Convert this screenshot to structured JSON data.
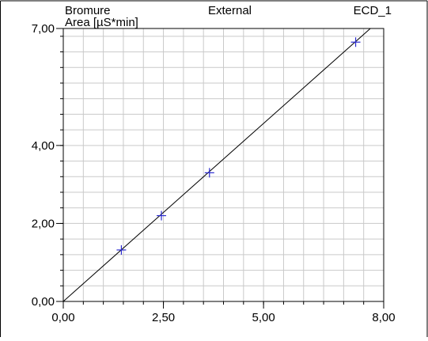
{
  "chart_data": {
    "type": "scatter",
    "header": {
      "left": "Bromure",
      "center": "External",
      "right": "ECD_1"
    },
    "ylabel": "Area  [µS*min]",
    "xlabel": "",
    "xlim": [
      0,
      8
    ],
    "ylim": [
      0,
      7
    ],
    "x_ticks": [
      {
        "value": 0,
        "label": "0,00"
      },
      {
        "value": 2.5,
        "label": "2,50"
      },
      {
        "value": 5,
        "label": "5,00"
      },
      {
        "value": 8,
        "label": "8,00"
      }
    ],
    "y_ticks": [
      {
        "value": 0,
        "label": "0,00"
      },
      {
        "value": 2,
        "label": "2,00"
      },
      {
        "value": 4,
        "label": "4,00"
      },
      {
        "value": 7,
        "label": "7,00"
      }
    ],
    "grid": true,
    "points": [
      {
        "x": 1.45,
        "y": 1.32
      },
      {
        "x": 2.45,
        "y": 2.2
      },
      {
        "x": 3.65,
        "y": 3.3
      },
      {
        "x": 7.3,
        "y": 6.65
      }
    ],
    "fit_line": {
      "slope": 0.913,
      "intercept": 0
    },
    "colors": {
      "marker": "#2b2bd0",
      "line": "#000000",
      "grid": "#c9c9c9",
      "frame": "#000000"
    }
  }
}
